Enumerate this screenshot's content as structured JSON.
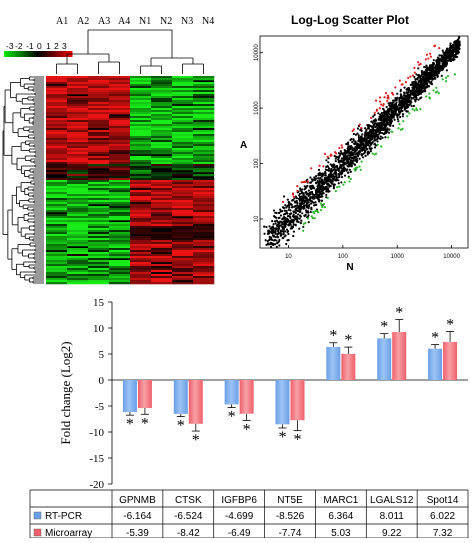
{
  "heatmap": {
    "column_labels": [
      "A1",
      "A2",
      "A3",
      "A4",
      "N1",
      "N2",
      "N3",
      "N4"
    ],
    "scale_labels": [
      "-3",
      "-2",
      "-1",
      "0",
      "1",
      "2",
      "3"
    ],
    "colors": {
      "low": "#19e019",
      "mid": "#000000",
      "high": "#e01919"
    }
  },
  "chart_data": [
    {
      "type": "scatter",
      "title": "Log-Log Scatter Plot",
      "xlabel": "N",
      "ylabel": "A",
      "x_scale": "log",
      "y_scale": "log",
      "x_ticks": [
        "10",
        "100",
        "1000",
        "10000"
      ],
      "y_ticks": [
        "10",
        "100",
        "1000",
        "10000"
      ],
      "xlim": [
        3,
        20000
      ],
      "ylim": [
        3,
        20000
      ],
      "colors": {
        "unchanged": "#000000",
        "up": "#e02020",
        "down": "#2bb52b"
      },
      "note": "Dense point cloud along the diagonal; red points above, green points below."
    },
    {
      "type": "bar",
      "title": "",
      "xlabel": "",
      "ylabel": "Fold change (Log2)",
      "ylim": [
        -20,
        15
      ],
      "y_ticks": [
        15,
        10,
        5,
        0,
        -5,
        -10,
        -15,
        -20
      ],
      "categories": [
        "GPNMB",
        "CTSK",
        "IGFBP6",
        "NT5E",
        "MARC1",
        "LGALS12",
        "Spot14"
      ],
      "series": [
        {
          "name": "RT-PCR",
          "color": "#6a9fe6",
          "values": [
            -6.164,
            -6.524,
            -4.699,
            -8.526,
            6.364,
            8.011,
            6.022
          ],
          "errors": [
            0.6,
            0.5,
            0.6,
            0.7,
            0.8,
            0.9,
            0.8
          ]
        },
        {
          "name": "Microarray",
          "color": "#ef5f6b",
          "values": [
            -5.39,
            -8.42,
            -6.49,
            -7.74,
            5.03,
            9.22,
            7.32
          ],
          "errors": [
            1.2,
            1.4,
            1.3,
            2.0,
            1.3,
            2.4,
            2.0
          ]
        }
      ],
      "value_labels": [
        [
          "-6.164",
          "-6.524",
          "-4.699",
          "-8.526",
          "6.364",
          "8.011",
          "6.022"
        ],
        [
          "-5.39",
          "-8.42",
          "-6.49",
          "-7.74",
          "5.03",
          "9.22",
          "7.32"
        ]
      ],
      "significance_marker": "*"
    }
  ]
}
